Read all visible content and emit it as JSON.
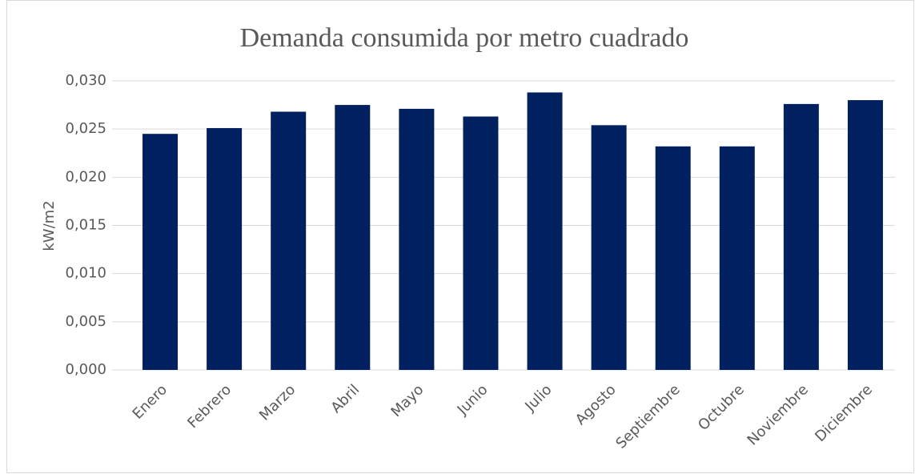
{
  "chart_data": {
    "type": "bar",
    "title": "Demanda consumida por metro cuadrado",
    "y_label": "kW/m2",
    "categories": [
      "Enero",
      "Febrero",
      "Marzo",
      "Abril",
      "Mayo",
      "Junio",
      "Julio",
      "Agosto",
      "Septiembre",
      "Octubre",
      "Noviembre",
      "Diciembre"
    ],
    "values": [
      0.0245,
      0.0251,
      0.0268,
      0.0275,
      0.0271,
      0.0263,
      0.0288,
      0.0254,
      0.0232,
      0.0232,
      0.0276,
      0.028
    ],
    "color": "#002060",
    "ylim": [
      0,
      0.03
    ],
    "yticks": [
      {
        "value": 0,
        "label": "0,000"
      },
      {
        "value": 0.005,
        "label": "0,005"
      },
      {
        "value": 0.01,
        "label": "0,010"
      },
      {
        "value": 0.015,
        "label": "0,015"
      },
      {
        "value": 0.02,
        "label": "0,020"
      },
      {
        "value": 0.025,
        "label": "0,025"
      },
      {
        "value": 0.03,
        "label": "0,030"
      }
    ],
    "grid": true
  }
}
